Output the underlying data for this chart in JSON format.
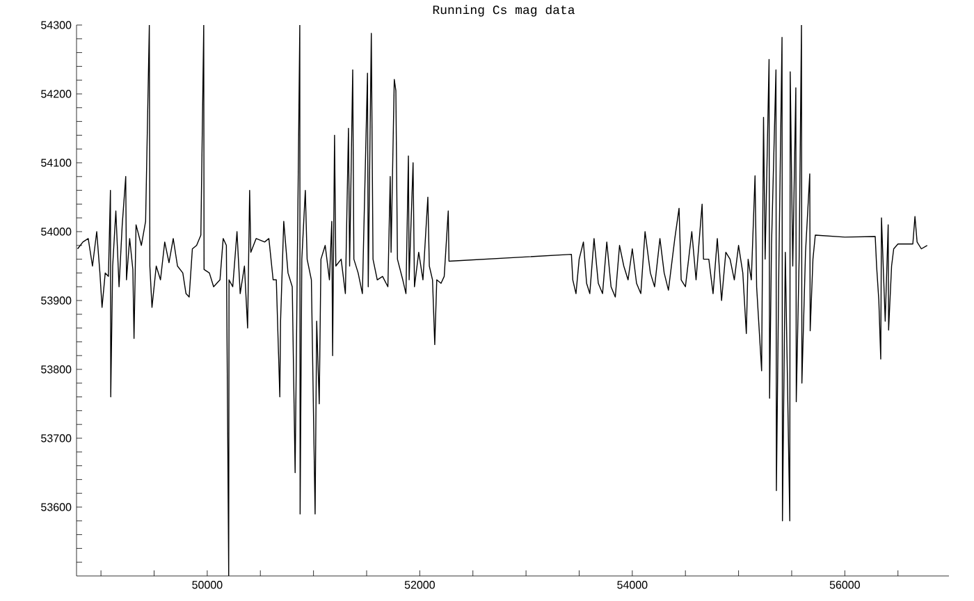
{
  "chart_data": {
    "type": "line",
    "title": "Running Cs mag data",
    "xlim": [
      48770,
      56980
    ],
    "ylim": [
      53500,
      54300
    ],
    "xticks": [
      {
        "value": 49000,
        "label": null
      },
      {
        "value": 49500,
        "label": null
      },
      50000,
      {
        "value": 50500,
        "label": null
      },
      {
        "value": 51000,
        "label": null
      },
      {
        "value": 51500,
        "label": null
      },
      52000,
      {
        "value": 52500,
        "label": null
      },
      {
        "value": 53000,
        "label": null
      },
      {
        "value": 53500,
        "label": null
      },
      54000,
      {
        "value": 54500,
        "label": null
      },
      {
        "value": 55000,
        "label": null
      },
      {
        "value": 55500,
        "label": null
      },
      56000,
      {
        "value": 56500,
        "label": null
      }
    ],
    "yticks": [
      {
        "value": 53520,
        "label": null
      },
      {
        "value": 53540,
        "label": null
      },
      {
        "value": 53560,
        "label": null
      },
      {
        "value": 53580,
        "label": null
      },
      53600,
      {
        "value": 53620,
        "label": null
      },
      {
        "value": 53640,
        "label": null
      },
      {
        "value": 53660,
        "label": null
      },
      {
        "value": 53680,
        "label": null
      },
      53700,
      {
        "value": 53720,
        "label": null
      },
      {
        "value": 53740,
        "label": null
      },
      {
        "value": 53760,
        "label": null
      },
      {
        "value": 53780,
        "label": null
      },
      53800,
      {
        "value": 53820,
        "label": null
      },
      {
        "value": 53840,
        "label": null
      },
      {
        "value": 53860,
        "label": null
      },
      {
        "value": 53880,
        "label": null
      },
      53900,
      {
        "value": 53920,
        "label": null
      },
      {
        "value": 53940,
        "label": null
      },
      {
        "value": 53960,
        "label": null
      },
      {
        "value": 53980,
        "label": null
      },
      54000,
      {
        "value": 54020,
        "label": null
      },
      {
        "value": 54040,
        "label": null
      },
      {
        "value": 54060,
        "label": null
      },
      {
        "value": 54080,
        "label": null
      },
      54100,
      {
        "value": 54120,
        "label": null
      },
      {
        "value": 54140,
        "label": null
      },
      {
        "value": 54160,
        "label": null
      },
      {
        "value": 54180,
        "label": null
      },
      54200,
      {
        "value": 54220,
        "label": null
      },
      {
        "value": 54240,
        "label": null
      },
      {
        "value": 54260,
        "label": null
      },
      {
        "value": 54280,
        "label": null
      },
      54300
    ],
    "grid": false,
    "marker": "none",
    "line_style": "solid",
    "series": [
      {
        "color": "#000000",
        "x": [
          48780,
          48830,
          48880,
          48920,
          48960,
          48990,
          49010,
          49040,
          49070,
          49089,
          49092,
          49110,
          49140,
          49170,
          49200,
          49233,
          49240,
          49270,
          49300,
          49311,
          49330,
          49380,
          49420,
          49455,
          49460,
          49480,
          49520,
          49560,
          49600,
          49640,
          49680,
          49720,
          49770,
          49800,
          49830,
          49860,
          49900,
          49940,
          49967,
          49970,
          50020,
          50060,
          50120,
          50150,
          50180,
          50202,
          50205,
          50240,
          50280,
          50310,
          50350,
          50380,
          50399,
          50410,
          50460,
          50540,
          50580,
          50620,
          50650,
          50683,
          50690,
          50720,
          50760,
          50800,
          50827,
          50840,
          50871,
          50874,
          50890,
          50923,
          50940,
          50980,
          51015,
          51030,
          51054,
          51070,
          51110,
          51150,
          51172,
          51180,
          51198,
          51210,
          51260,
          51300,
          51329,
          51340,
          51369,
          51380,
          51420,
          51460,
          51508,
          51515,
          51544,
          51560,
          51600,
          51650,
          51700,
          51722,
          51730,
          51760,
          51775,
          51790,
          51840,
          51870,
          51893,
          51900,
          51937,
          51950,
          51990,
          52030,
          52076,
          52090,
          52120,
          52141,
          52160,
          52200,
          52230,
          52268,
          52275,
          53427,
          53440,
          53470,
          53500,
          53540,
          53570,
          53600,
          53640,
          53680,
          53720,
          53760,
          53800,
          53840,
          53880,
          53920,
          53960,
          54000,
          54040,
          54080,
          54120,
          54170,
          54210,
          54260,
          54300,
          54340,
          54400,
          54440,
          54460,
          54500,
          54560,
          54600,
          54657,
          54670,
          54720,
          54760,
          54800,
          54840,
          54880,
          54920,
          54960,
          55000,
          55040,
          55073,
          55090,
          55120,
          55155,
          55170,
          55217,
          55235,
          55250,
          55287,
          55292,
          55310,
          55352,
          55356,
          55380,
          55409,
          55413,
          55440,
          55482,
          55486,
          55510,
          55539,
          55543,
          55570,
          55592,
          55596,
          55630,
          55670,
          55674,
          55700,
          55722,
          56000,
          56286,
          56299,
          56320,
          56338,
          56345,
          56380,
          56408,
          56412,
          56440,
          56460,
          56500,
          56640,
          56660,
          56680,
          56720,
          56775
        ],
        "values": [
          53975,
          53985,
          53990,
          53950,
          54000,
          53940,
          53890,
          53940,
          53935,
          54060,
          53760,
          53950,
          54030,
          53920,
          54010,
          54080,
          53930,
          53990,
          53945,
          53845,
          54010,
          53980,
          54015,
          54300,
          53950,
          53890,
          53950,
          53930,
          53985,
          53955,
          53990,
          53950,
          53940,
          53910,
          53905,
          53975,
          53980,
          53995,
          54300,
          53945,
          53940,
          53920,
          53930,
          53990,
          53980,
          53500,
          53930,
          53920,
          54000,
          53910,
          53950,
          53860,
          54060,
          53970,
          53990,
          53985,
          53990,
          53930,
          53930,
          53760,
          53870,
          54015,
          53940,
          53920,
          53650,
          53840,
          54300,
          53590,
          53960,
          54060,
          53960,
          53930,
          53590,
          53870,
          53750,
          53960,
          53980,
          53930,
          54015,
          53820,
          54140,
          53950,
          53960,
          53910,
          54150,
          53950,
          54235,
          53960,
          53940,
          53910,
          54230,
          53920,
          54288,
          53960,
          53930,
          53935,
          53920,
          54080,
          53970,
          54221,
          54205,
          53960,
          53930,
          53910,
          54110,
          53930,
          54100,
          53920,
          53970,
          53930,
          54050,
          53950,
          53930,
          53836,
          53930,
          53925,
          53935,
          54030,
          53957,
          53967,
          53930,
          53910,
          53960,
          53985,
          53925,
          53910,
          53990,
          53925,
          53910,
          53985,
          53920,
          53905,
          53980,
          53950,
          53930,
          53975,
          53925,
          53910,
          54000,
          53940,
          53920,
          53990,
          53940,
          53915,
          53990,
          54034,
          53930,
          53920,
          54000,
          53930,
          54040,
          53960,
          53960,
          53910,
          53990,
          53900,
          53970,
          53960,
          53930,
          53980,
          53940,
          53852,
          53960,
          53930,
          54081,
          53920,
          53798,
          54166,
          53960,
          54250,
          53758,
          53980,
          54235,
          53624,
          53960,
          54282,
          53580,
          53970,
          53580,
          54232,
          53950,
          54209,
          53753,
          53960,
          54300,
          53780,
          53970,
          54084,
          53856,
          53960,
          53995,
          53992,
          53993,
          53950,
          53900,
          53815,
          54020,
          53870,
          54010,
          53857,
          53950,
          53975,
          53982,
          53982,
          54022,
          53985,
          53975,
          53980
        ]
      }
    ]
  }
}
